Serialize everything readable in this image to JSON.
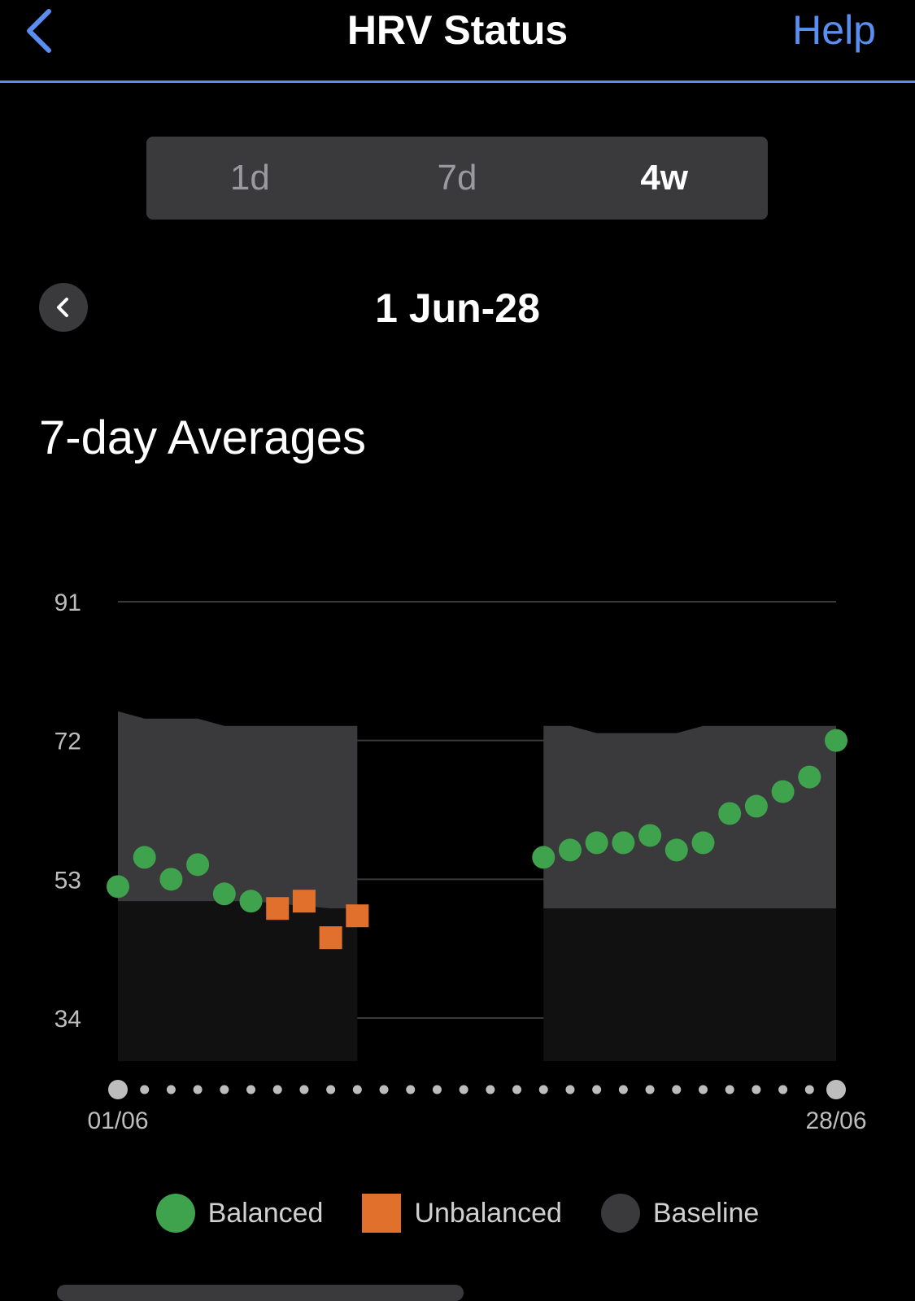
{
  "nav": {
    "title": "HRV Status",
    "help_label": "Help",
    "back_icon": "chevron-left-icon"
  },
  "range_tabs": [
    {
      "label": "1d",
      "active": false
    },
    {
      "label": "7d",
      "active": false
    },
    {
      "label": "4w",
      "active": true
    }
  ],
  "period": {
    "label": "1 Jun-28",
    "prev_icon": "chevron-left-icon"
  },
  "section": {
    "title": "7-day Averages"
  },
  "colors": {
    "balanced": "#3fa34d",
    "unbalanced": "#e2702d",
    "baseline": "#3a3a3c",
    "accent": "#5a8ef0"
  },
  "chart_data": {
    "type": "scatter",
    "title": "7-day Averages",
    "y_ticks": [
      91,
      72,
      53,
      34
    ],
    "ylim": [
      28.1,
      91
    ],
    "x_start_label": "01/06",
    "x_end_label": "28/06",
    "days": 28,
    "grid": true,
    "baseline_bands": [
      {
        "start_day": 1,
        "end_day": 10,
        "upper": [
          [
            1,
            76.0
          ],
          [
            2,
            75.0
          ],
          [
            3,
            75.0
          ],
          [
            4,
            75.0
          ],
          [
            5,
            74.0
          ],
          [
            6,
            74.0
          ],
          [
            7,
            74.0
          ],
          [
            8,
            74.0
          ],
          [
            9,
            74.0
          ],
          [
            10,
            74.0
          ]
        ],
        "lower": [
          [
            1,
            50.0
          ],
          [
            6,
            50.0
          ],
          [
            9,
            49.0
          ],
          [
            10,
            49.0
          ]
        ],
        "bottom": 28.1
      },
      {
        "start_day": 17,
        "end_day": 28,
        "upper": [
          [
            17,
            74.0
          ],
          [
            18,
            74.0
          ],
          [
            19,
            73.0
          ],
          [
            20,
            73.0
          ],
          [
            21,
            73.0
          ],
          [
            22,
            73.0
          ],
          [
            23,
            74.0
          ],
          [
            24,
            74.0
          ],
          [
            28,
            74.0
          ]
        ],
        "lower": [
          [
            17,
            49.0
          ],
          [
            28,
            49.0
          ]
        ],
        "bottom": 28.1
      }
    ],
    "series": [
      {
        "name": "Balanced",
        "marker": "circle",
        "points": [
          [
            1,
            52
          ],
          [
            2,
            56
          ],
          [
            3,
            53
          ],
          [
            4,
            55
          ],
          [
            5,
            51
          ],
          [
            6,
            50
          ],
          [
            17,
            56
          ],
          [
            18,
            57
          ],
          [
            19,
            58
          ],
          [
            20,
            58
          ],
          [
            21,
            59
          ],
          [
            22,
            57
          ],
          [
            23,
            58
          ],
          [
            24,
            62
          ],
          [
            25,
            63
          ],
          [
            26,
            65
          ],
          [
            27,
            67
          ],
          [
            28,
            72
          ]
        ]
      },
      {
        "name": "Unbalanced",
        "marker": "square",
        "points": [
          [
            7,
            49
          ],
          [
            8,
            50
          ],
          [
            9,
            45
          ],
          [
            10,
            48
          ]
        ]
      }
    ],
    "legend": [
      "Balanced",
      "Unbalanced",
      "Baseline"
    ]
  }
}
